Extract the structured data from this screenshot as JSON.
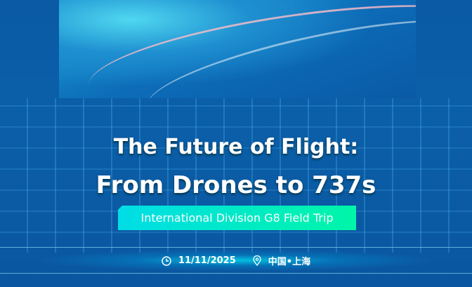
{
  "title_line1": "The Future of Flight:",
  "title_line2": "From Drones to 737s",
  "subtitle": "International Division G8 Field Trip",
  "date": "11/11/2025",
  "location": "中国•上海",
  "icons": {
    "date": "clock-icon",
    "location": "map-pin-icon"
  },
  "colors": {
    "background": "#0a58a0",
    "subtitle_gradient_start": "#00dde6",
    "subtitle_gradient_end": "#00f6a8"
  }
}
